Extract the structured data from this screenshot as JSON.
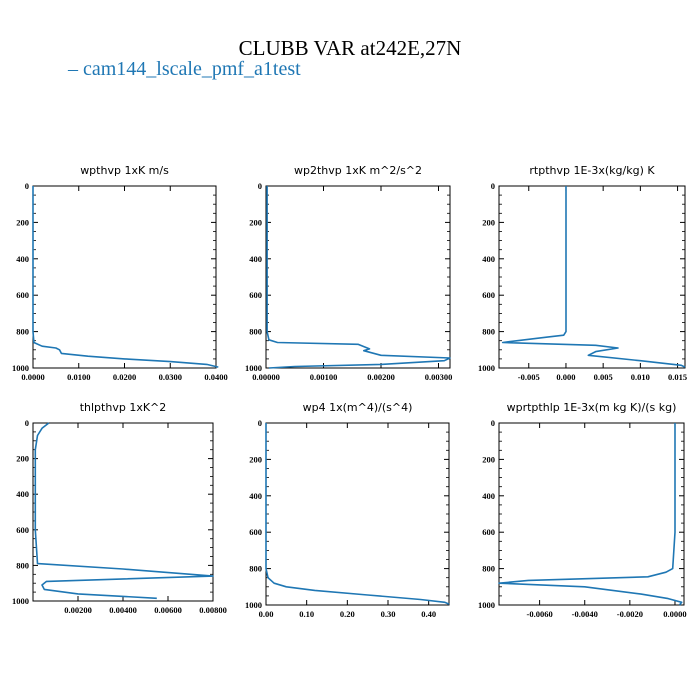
{
  "page": {
    "title": "CLUBB VAR at242E,27N",
    "legend_label": "cam144_lscale_pmf_a1test",
    "series_color": "#1f77b4"
  },
  "chart_data": [
    {
      "type": "line",
      "title": "wpthvp 1xK m/s",
      "xlim": [
        0,
        0.04
      ],
      "ylim": [
        1000,
        0
      ],
      "x_ticks": [
        "0.0000",
        "0.0100",
        "0.0200",
        "0.0300",
        "0.0400"
      ],
      "y_ticks": [
        "0",
        "200",
        "400",
        "600",
        "800",
        "1000"
      ],
      "series": [
        {
          "x": [
            0,
            0,
            0,
            0,
            0.0002,
            0.002,
            0.005,
            0.0058,
            0.0062,
            0.012,
            0.02,
            0.03,
            0.038,
            0.0405
          ],
          "y": [
            0,
            200,
            500,
            800,
            860,
            880,
            890,
            900,
            920,
            935,
            950,
            965,
            980,
            995
          ]
        }
      ]
    },
    {
      "type": "line",
      "title": "wp2thvp 1xK m^2/s^2",
      "xlim": [
        0,
        0.0032
      ],
      "ylim": [
        1000,
        0
      ],
      "x_ticks": [
        "0.00000",
        "0.00100",
        "0.00200",
        "0.00300"
      ],
      "y_ticks": [
        "0",
        "200",
        "400",
        "600",
        "800",
        "1000"
      ],
      "series": [
        {
          "x": [
            2e-05,
            2e-05,
            2e-05,
            2e-05,
            5e-05,
            0.0002,
            0.0016,
            0.0018,
            0.0017,
            0.002,
            0.0032,
            0.0031,
            0.002,
            0.0005,
            5e-05
          ],
          "y": [
            0,
            200,
            500,
            800,
            845,
            860,
            870,
            895,
            905,
            930,
            945,
            960,
            980,
            992,
            1000
          ]
        }
      ]
    },
    {
      "type": "line",
      "title": "rtpthvp 1E-3x(kg/kg) K",
      "xlim": [
        -0.009,
        0.016
      ],
      "ylim": [
        1000,
        0
      ],
      "x_ticks": [
        "-0.005",
        "0.000",
        "0.005",
        "0.010",
        "0.015"
      ],
      "y_ticks": [
        "0",
        "200",
        "400",
        "600",
        "800",
        "1000"
      ],
      "series": [
        {
          "x": [
            0,
            0,
            0,
            0,
            -0.0003,
            -0.0025,
            -0.0085,
            0.004,
            0.007,
            0.004,
            0.003,
            0.01,
            0.0155,
            0.016
          ],
          "y": [
            0,
            200,
            500,
            800,
            820,
            830,
            860,
            875,
            890,
            910,
            930,
            960,
            985,
            995
          ]
        }
      ]
    },
    {
      "type": "line",
      "title": "thlpthvp 1xK^2",
      "xlim": [
        0,
        0.008
      ],
      "ylim": [
        1000,
        0
      ],
      "x_ticks": [
        "0.00200",
        "0.00400",
        "0.00600",
        "0.00800"
      ],
      "y_ticks": [
        "0",
        "200",
        "400",
        "600",
        "800",
        "1000"
      ],
      "series": [
        {
          "x": [
            0.0007,
            0.0004,
            0.0002,
            0.0001,
            0.0001,
            0.0001,
            0.0002,
            0.004,
            0.008,
            0.0006,
            0.0004,
            0.0005,
            0.002,
            0.0055
          ],
          "y": [
            0,
            30,
            70,
            150,
            300,
            600,
            790,
            820,
            860,
            890,
            910,
            935,
            960,
            985
          ]
        }
      ]
    },
    {
      "type": "line",
      "title": "wp4 1x(m^4)/(s^4)",
      "xlim": [
        0,
        0.45
      ],
      "ylim": [
        1000,
        0
      ],
      "x_ticks": [
        "0.00",
        "0.10",
        "0.20",
        "0.30",
        "0.40"
      ],
      "y_ticks": [
        "0",
        "200",
        "400",
        "600",
        "800",
        "1000"
      ],
      "series": [
        {
          "x": [
            0,
            0,
            0,
            0.005,
            0.02,
            0.05,
            0.12,
            0.25,
            0.38,
            0.44,
            0.45
          ],
          "y": [
            0,
            400,
            800,
            850,
            880,
            900,
            920,
            945,
            970,
            985,
            995
          ]
        }
      ]
    },
    {
      "type": "line",
      "title": "wprtpthlp 1E-3x(m kg K)/(s kg)",
      "xlim": [
        -0.0078,
        0.0004
      ],
      "ylim": [
        1000,
        0
      ],
      "x_ticks": [
        "-0.0060",
        "-0.0040",
        "-0.0020",
        "0.0000"
      ],
      "y_ticks": [
        "0",
        "200",
        "400",
        "600",
        "800",
        "1000"
      ],
      "series": [
        {
          "x": [
            0,
            0,
            0,
            -0.0001,
            -0.0004,
            -0.0012,
            -0.0065,
            -0.0078,
            -0.004,
            -0.0015,
            -0.0003,
            0.0003,
            0.0002
          ],
          "y": [
            0,
            300,
            600,
            800,
            820,
            845,
            865,
            880,
            900,
            940,
            965,
            985,
            1000
          ]
        }
      ]
    }
  ]
}
